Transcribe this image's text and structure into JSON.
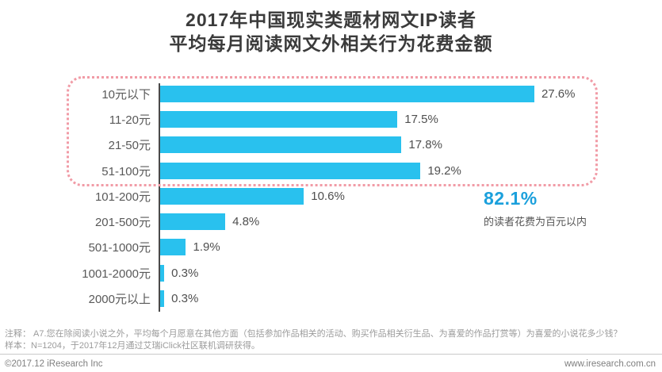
{
  "title": {
    "line1": "2017年中国现实类题材网文IP读者",
    "line2": "平均每月阅读网文外相关行为花费金额"
  },
  "chart_data": {
    "type": "bar",
    "orientation": "horizontal",
    "title": "2017年中国现实类题材网文IP读者平均每月阅读网文外相关行为花费金额",
    "categories": [
      "10元以下",
      "11-20元",
      "21-50元",
      "51-100元",
      "101-200元",
      "201-500元",
      "501-1000元",
      "1001-2000元",
      "2000元以上"
    ],
    "values": [
      27.6,
      17.5,
      17.8,
      19.2,
      10.6,
      4.8,
      1.9,
      0.3,
      0.3
    ],
    "value_labels": [
      "27.6%",
      "17.5%",
      "17.8%",
      "19.2%",
      "10.6%",
      "4.8%",
      "1.9%",
      "0.3%",
      "0.3%"
    ],
    "xlabel": "",
    "ylabel": "",
    "xlim": [
      0,
      30
    ],
    "grid": false,
    "legend": false,
    "bar_color": "#29C1EE",
    "highlight": {
      "categories_included": [
        "10元以下",
        "11-20元",
        "21-50元",
        "51-100元"
      ],
      "border_color": "#F19BA6"
    },
    "annotation": {
      "value": "82.1%",
      "caption": "的读者花费为百元以内",
      "color": "#1BA0DC"
    }
  },
  "notes": {
    "line1": "注释：  A7.您在除阅读小说之外，平均每个月愿意在其他方面（包括参加作品相关的活动、购买作品相关衍生品、为喜爱的作品打赏等）为喜爱的小说花多少钱？",
    "line2": "样本：N=1204，于2017年12月通过艾瑞iClick社区联机调研获得。"
  },
  "footer": {
    "copyright": "©2017.12 iResearch Inc",
    "website": "www.iresearch.com.cn"
  }
}
